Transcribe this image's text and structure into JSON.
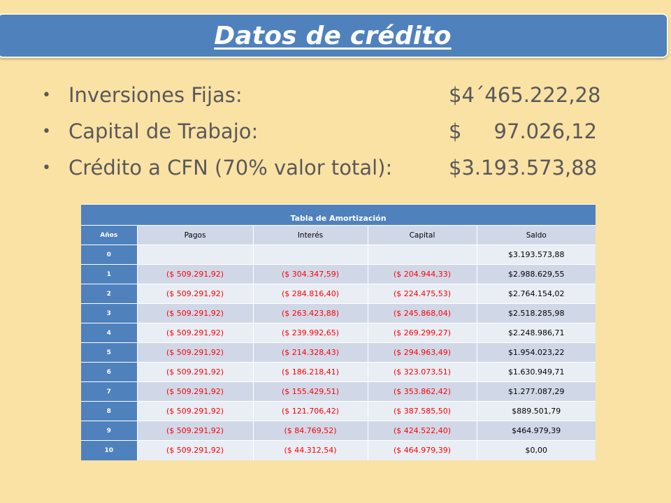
{
  "title": "Datos de crédito",
  "bullets": [
    {
      "label": "Inversiones  Fijas:",
      "value": "$4´465.222,28"
    },
    {
      "label": "Capital de Trabajo:",
      "value": "$     97.026,12"
    },
    {
      "label": "Crédito a CFN (70% valor total):",
      "value": "$3.193.573,88"
    }
  ],
  "table": {
    "caption": "Tabla de Amortización",
    "headers": [
      "Años",
      "Pagos",
      "Interés",
      "Capital",
      "Saldo"
    ],
    "rows": [
      [
        "0",
        "",
        "",
        "",
        "$3.193.573,88"
      ],
      [
        "1",
        "($ 509.291,92)",
        "($ 304.347,59)",
        "($ 204.944,33)",
        "$2.988.629,55"
      ],
      [
        "2",
        "($ 509.291,92)",
        "($ 284.816,40)",
        "($ 224.475,53)",
        "$2.764.154,02"
      ],
      [
        "3",
        "($ 509.291,92)",
        "($ 263.423,88)",
        "($ 245.868,04)",
        "$2.518.285,98"
      ],
      [
        "4",
        "($ 509.291,92)",
        "($ 239.992,65)",
        "($ 269.299,27)",
        "$2.248.986,71"
      ],
      [
        "5",
        "($ 509.291,92)",
        "($ 214.328,43)",
        "($ 294.963,49)",
        "$1.954.023,22"
      ],
      [
        "6",
        "($ 509.291,92)",
        "($ 186.218,41)",
        "($ 323.073,51)",
        "$1.630.949,71"
      ],
      [
        "7",
        "($ 509.291,92)",
        "($ 155.429,51)",
        "($ 353.862,42)",
        "$1.277.087,29"
      ],
      [
        "8",
        "($ 509.291,92)",
        "($ 121.706,42)",
        "($ 387.585,50)",
        "$889.501,79"
      ],
      [
        "9",
        "($ 509.291,92)",
        "($ 84.769,52)",
        "($ 424.522,40)",
        "$464.979,39"
      ],
      [
        "10",
        "($ 509.291,92)",
        "($ 44.312,54)",
        "($ 464.979,39)",
        "$0,00"
      ]
    ]
  },
  "colors": {
    "background": "#fae2a5",
    "title_bar": "#4f81bd",
    "negative_text": "#ff0000"
  }
}
